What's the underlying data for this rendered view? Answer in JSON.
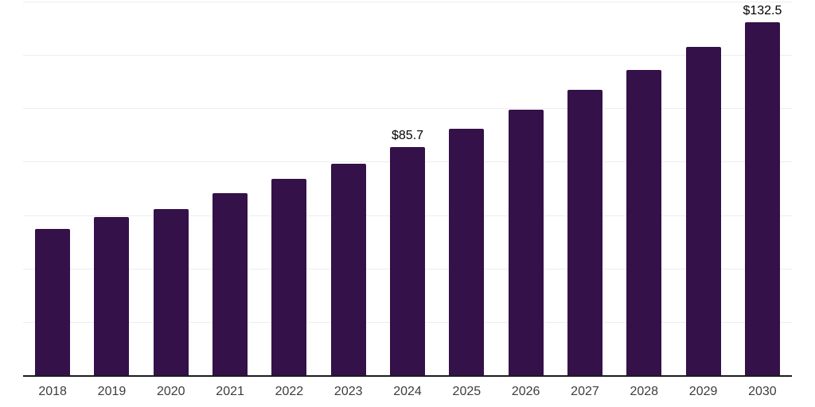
{
  "chart_data": {
    "type": "bar",
    "title": "",
    "xlabel": "",
    "ylabel": "",
    "categories": [
      "2018",
      "2019",
      "2020",
      "2021",
      "2022",
      "2023",
      "2024",
      "2025",
      "2026",
      "2027",
      "2028",
      "2029",
      "2030"
    ],
    "values": [
      55.0,
      59.5,
      62.6,
      68.5,
      73.9,
      79.5,
      85.7,
      92.6,
      99.7,
      107.2,
      114.8,
      123.3,
      132.5
    ],
    "value_labels": [
      "",
      "",
      "",
      "",
      "",
      "",
      "$85.7",
      "",
      "",
      "",
      "",
      "",
      "$132.5"
    ],
    "ylim": [
      0,
      140
    ],
    "grid_interval": 20,
    "grid": "horizontal",
    "legend": "none",
    "colors": {
      "bar": "#341149",
      "grid": "#ededed",
      "axis_line": "#1b1b22",
      "tick_label": "#3d3d3d",
      "value_label": "#000000",
      "background": "#ffffff"
    }
  }
}
